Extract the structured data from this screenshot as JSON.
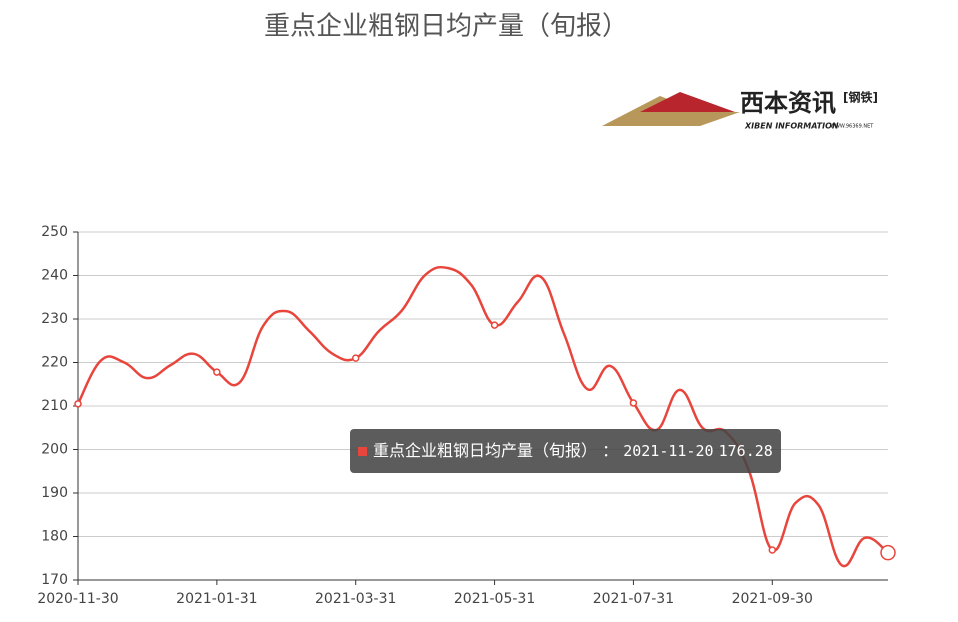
{
  "chart_data": {
    "type": "line",
    "title": "重点企业粗钢日均产量（旬报）",
    "categories": [
      "2020-11-30",
      null,
      null,
      null,
      null,
      null,
      "2021-01-31",
      null,
      null,
      null,
      null,
      null,
      "2021-03-31",
      null,
      null,
      null,
      null,
      null,
      "2021-05-31",
      null,
      null,
      null,
      null,
      null,
      "2021-07-31",
      null,
      null,
      null,
      null,
      null,
      "2021-09-30",
      null,
      null,
      null,
      null,
      "2021-11-20"
    ],
    "series": [
      {
        "name": "重点企业粗钢日均产量（旬报）",
        "color": "#e8453c",
        "values": [
          210.5,
          220.5,
          220,
          216.4,
          219.4,
          222,
          217.8,
          215.5,
          228.4,
          231.8,
          227.2,
          222,
          221,
          227.2,
          232,
          240.1,
          241.7,
          237.8,
          228.6,
          233.9,
          239.7,
          226.6,
          213.9,
          219.2,
          210.7,
          204.5,
          213.7,
          204.9,
          204,
          195,
          176.9,
          187.7,
          187.2,
          173.4,
          179.7,
          176.28
        ]
      }
    ],
    "ylim": [
      170,
      250
    ],
    "yticks": [
      170,
      180,
      190,
      200,
      210,
      220,
      230,
      240,
      250
    ],
    "grid": true,
    "tooltip": {
      "separator": " ： ",
      "index": 35
    },
    "logo": {
      "name": "西本资讯",
      "tag": "[钢铁]",
      "english": "XIBEN INFORMATION",
      "url": "WWW.96369.NET"
    }
  }
}
